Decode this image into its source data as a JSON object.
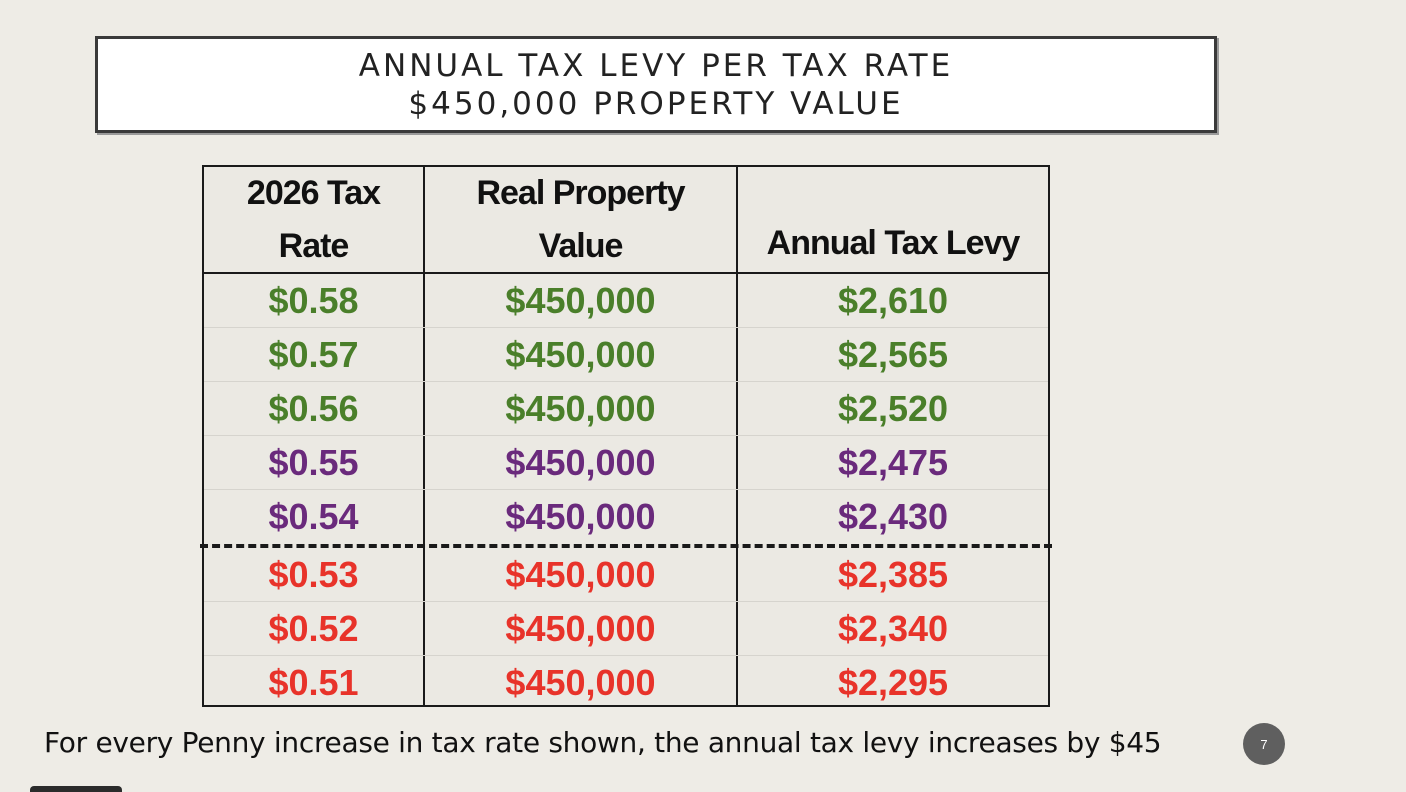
{
  "title": {
    "line1": "ANNUAL TAX LEVY PER TAX RATE",
    "line2": "$450,000 PROPERTY VALUE"
  },
  "table": {
    "headers": [
      {
        "line1": "2026 Tax",
        "line2": "Rate"
      },
      {
        "line1": "Real Property",
        "line2": "Value"
      },
      {
        "line1": "",
        "line2": "Annual Tax Levy"
      }
    ],
    "rows": [
      {
        "rate": "$0.58",
        "value": "$450,000",
        "levy": "$2,610",
        "color": "#4a7f2a"
      },
      {
        "rate": "$0.57",
        "value": "$450,000",
        "levy": "$2,565",
        "color": "#4a7f2a"
      },
      {
        "rate": "$0.56",
        "value": "$450,000",
        "levy": "$2,520",
        "color": "#4a7f2a"
      },
      {
        "rate": "$0.55",
        "value": "$450,000",
        "levy": "$2,475",
        "color": "#6a2a7c"
      },
      {
        "rate": "$0.54",
        "value": "$450,000",
        "levy": "$2,430",
        "color": "#6a2a7c"
      },
      {
        "rate": "$0.53",
        "value": "$450,000",
        "levy": "$2,385",
        "color": "#e8332a"
      },
      {
        "rate": "$0.52",
        "value": "$450,000",
        "levy": "$2,340",
        "color": "#e8332a"
      },
      {
        "rate": "$0.51",
        "value": "$450,000",
        "levy": "$2,295",
        "color": "#e8332a"
      }
    ]
  },
  "footnote": "For every Penny increase in tax rate shown, the annual tax levy increases by $45",
  "page_number": "7"
}
